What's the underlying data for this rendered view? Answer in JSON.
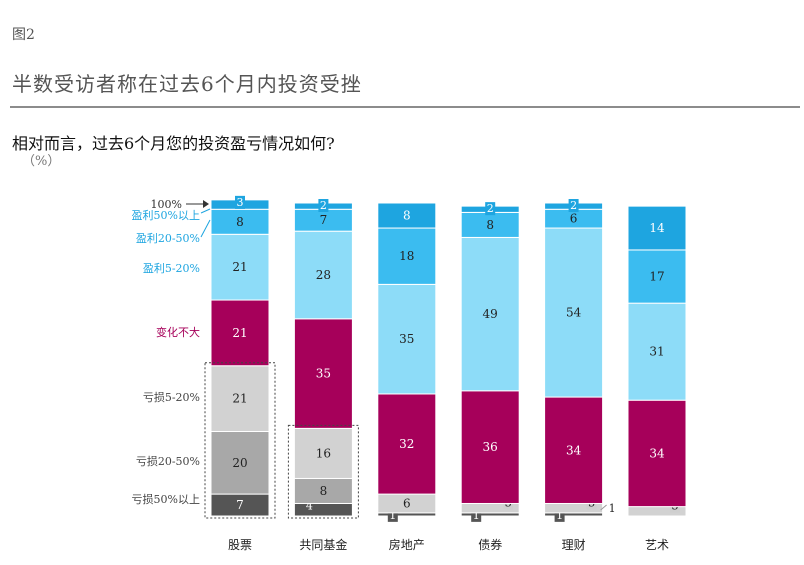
{
  "figure_label": "图2",
  "headline": "半数受访者称在过去6个月内投资受挫",
  "question": "相对而言，过去6个月您的投资盈亏情况如何?",
  "unit": "（%）",
  "colors": {
    "profit_over_50": "#1ea5e0",
    "profit_20_50": "#3bbcf0",
    "profit_5_20": "#8ddcf8",
    "flat": "#a6005a",
    "loss_5_20": "#d2d2d2",
    "loss_20_50": "#a8a8a8",
    "loss_over_50": "#555555",
    "legend_profit_text": "#1ea5e0",
    "legend_flat_text": "#a6005a",
    "legend_loss_text": "#444444"
  },
  "chart_data": {
    "type": "bar",
    "stacked": true,
    "categories": [
      "股票",
      "共同基金",
      "房地产",
      "债券",
      "理财",
      "艺术"
    ],
    "series": [
      {
        "name": "亏损50%以上",
        "key": "loss_over_50",
        "values": [
          7,
          4,
          1,
          1,
          1,
          0
        ]
      },
      {
        "name": "亏损20-50%",
        "key": "loss_20_50",
        "values": [
          20,
          8,
          0,
          0,
          0,
          0
        ]
      },
      {
        "name": "亏损5-20%",
        "key": "loss_5_20",
        "values": [
          21,
          16,
          6,
          3,
          3,
          3
        ]
      },
      {
        "name": "变化不大",
        "key": "flat",
        "values": [
          21,
          35,
          32,
          36,
          34,
          34
        ]
      },
      {
        "name": "盈利5-20%",
        "key": "profit_5_20",
        "values": [
          21,
          28,
          35,
          49,
          54,
          31
        ]
      },
      {
        "name": "盈利20-50%",
        "key": "profit_20_50",
        "values": [
          8,
          7,
          18,
          8,
          6,
          17
        ]
      },
      {
        "name": "盈利50%以上",
        "key": "profit_over_50",
        "values": [
          3,
          2,
          8,
          2,
          2,
          14
        ]
      }
    ],
    "extra_labels": [
      {
        "category": "理财",
        "value": 1
      }
    ],
    "top_marker": "100%",
    "ylim": [
      0,
      100
    ],
    "highlight_groups": [
      "股票",
      "共同基金"
    ]
  }
}
